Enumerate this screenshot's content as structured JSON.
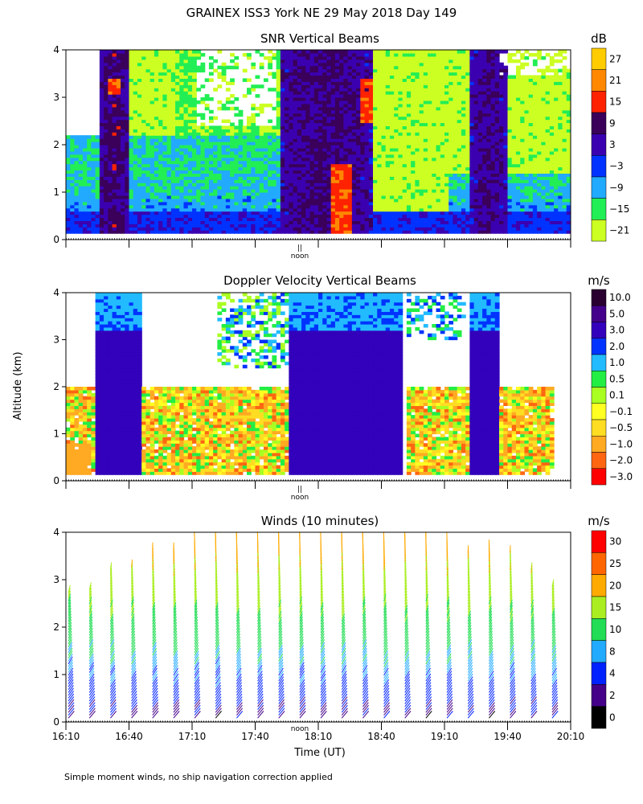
{
  "title": "GRAINEX ISS3 York NE  29 May 2018 Day 149",
  "ylabel": "Altitude (km)",
  "xlabel": "Time (UT)",
  "footnote": "Simple moment winds, no ship navigation correction applied",
  "noon_label": "noon",
  "noon_marker": "||",
  "chart_data": [
    {
      "type": "heatmap",
      "title": "SNR Vertical Beams",
      "ylabel": "Altitude (km)",
      "yticks": [
        "0",
        "1",
        "2",
        "3",
        "4"
      ],
      "ylim": [
        0,
        4
      ],
      "xlim": [
        "16:10",
        "20:10"
      ],
      "colorbar": {
        "unit": "dB",
        "labels": [
          "27",
          "21",
          "15",
          "9",
          "3",
          "−3",
          "−9",
          "−15",
          "−21"
        ],
        "colors": [
          "#ffcc00",
          "#ff8800",
          "#ff2200",
          "#3a005a",
          "#3b00b0",
          "#0033ff",
          "#22aaff",
          "#22ee55",
          "#ccff22"
        ]
      },
      "vertical_high_snr_periods_ut": [
        "16:20-16:30",
        "17:50-18:30",
        "19:20-19:30"
      ]
    },
    {
      "type": "heatmap",
      "title": "Doppler Velocity Vertical Beams",
      "yticks": [
        "0",
        "1",
        "2",
        "3",
        "4"
      ],
      "ylim": [
        0,
        4
      ],
      "xlim": [
        "16:10",
        "20:10"
      ],
      "colorbar": {
        "unit": "m/s",
        "labels": [
          "10.0",
          "5.0",
          "3.0",
          "2.0",
          "1.0",
          "0.5",
          "0.1",
          "−0.1",
          "−0.5",
          "−1.0",
          "−2.0",
          "−3.0"
        ],
        "colors": [
          "#2a0030",
          "#44008a",
          "#3300bb",
          "#0033ff",
          "#22bbff",
          "#22ee44",
          "#aaff22",
          "#ffff22",
          "#ffdd22",
          "#ffaa22",
          "#ff6611",
          "#ff0000"
        ]
      }
    },
    {
      "type": "wind-barbs",
      "title": "Winds (10 minutes)",
      "yticks": [
        "0",
        "1",
        "2",
        "3",
        "4"
      ],
      "ylim": [
        0,
        4
      ],
      "xticks": [
        "16:10",
        "16:40",
        "17:10",
        "17:40",
        "18:10",
        "18:40",
        "19:10",
        "19:40",
        "20:10"
      ],
      "colorbar": {
        "unit": "m/s",
        "labels": [
          "30",
          "25",
          "20",
          "15",
          "10",
          "8",
          "4",
          "2",
          "0"
        ],
        "colors": [
          "#ff0000",
          "#ff6600",
          "#ffaa00",
          "#aaee22",
          "#22dd55",
          "#22aaff",
          "#0022ff",
          "#440088",
          "#000000"
        ]
      }
    }
  ]
}
